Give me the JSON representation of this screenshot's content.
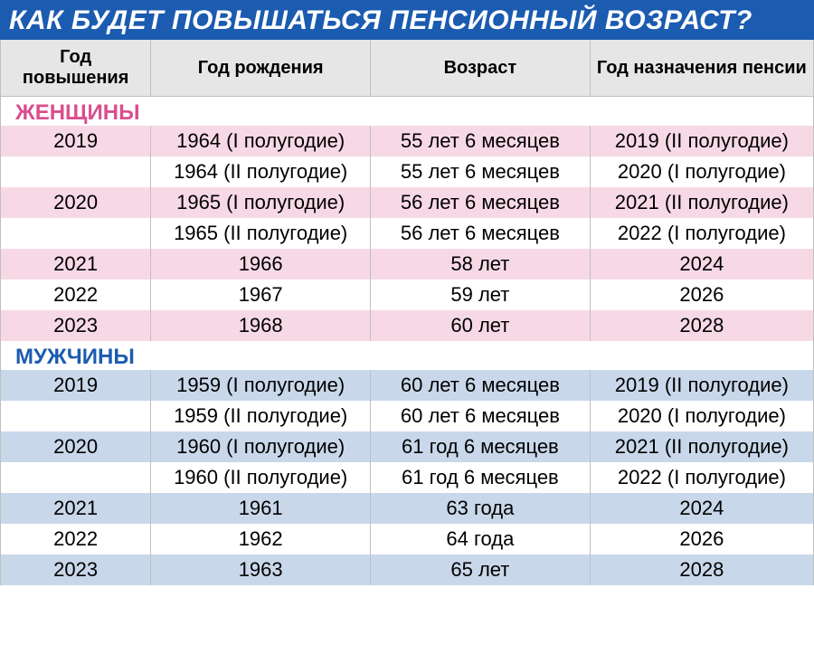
{
  "title": "КАК БУДЕТ ПОВЫШАТЬСЯ ПЕНСИОННЫЙ ВОЗРАСТ?",
  "title_bg": "#1b5bb0",
  "title_color": "#ffffff",
  "title_fontsize": 30,
  "header_bg": "#e6e6e6",
  "header_fontsize": 20,
  "cell_fontsize": 22,
  "section_fontsize": 24,
  "border_color": "#bfbfbf",
  "columns": [
    "Год повышения",
    "Год рождения",
    "Возраст",
    "Год назначения пенсии"
  ],
  "col_widths_pct": [
    18.5,
    27,
    27,
    27.5
  ],
  "sections": [
    {
      "label": "ЖЕНЩИНЫ",
      "label_color": "#d94f8e",
      "stripe_color": "#f7d9e6",
      "alt_color": "#ffffff",
      "rows": [
        {
          "cells": [
            "2019",
            "1964 (I полугодие)",
            "55 лет 6 месяцев",
            "2019 (II полугодие)"
          ],
          "striped": true
        },
        {
          "cells": [
            "",
            "1964 (II полугодие)",
            "55 лет 6 месяцев",
            "2020 (I полугодие)"
          ],
          "striped": false
        },
        {
          "cells": [
            "2020",
            "1965 (I полугодие)",
            "56 лет 6 месяцев",
            "2021 (II полугодие)"
          ],
          "striped": true
        },
        {
          "cells": [
            "",
            "1965 (II полугодие)",
            "56 лет 6 месяцев",
            "2022 (I полугодие)"
          ],
          "striped": false
        },
        {
          "cells": [
            "2021",
            "1966",
            "58 лет",
            "2024"
          ],
          "striped": true
        },
        {
          "cells": [
            "2022",
            "1967",
            "59 лет",
            "2026"
          ],
          "striped": false
        },
        {
          "cells": [
            "2023",
            "1968",
            "60 лет",
            "2028"
          ],
          "striped": true
        }
      ]
    },
    {
      "label": "МУЖЧИНЫ",
      "label_color": "#1b5bb0",
      "stripe_color": "#c9d7ea",
      "alt_color": "#ffffff",
      "rows": [
        {
          "cells": [
            "2019",
            "1959 (I полугодие)",
            "60 лет 6 месяцев",
            "2019 (II полугодие)"
          ],
          "striped": true
        },
        {
          "cells": [
            "",
            "1959 (II полугодие)",
            "60 лет 6 месяцев",
            "2020 (I полугодие)"
          ],
          "striped": false
        },
        {
          "cells": [
            "2020",
            "1960 (I полугодие)",
            "61 год 6 месяцев",
            "2021 (II полугодие)"
          ],
          "striped": true
        },
        {
          "cells": [
            "",
            "1960 (II полугодие)",
            "61 год 6 месяцев",
            "2022 (I полугодие)"
          ],
          "striped": false
        },
        {
          "cells": [
            "2021",
            "1961",
            "63 года",
            "2024"
          ],
          "striped": true
        },
        {
          "cells": [
            "2022",
            "1962",
            "64 года",
            "2026"
          ],
          "striped": false
        },
        {
          "cells": [
            "2023",
            "1963",
            "65 лет",
            "2028"
          ],
          "striped": true
        }
      ]
    }
  ]
}
